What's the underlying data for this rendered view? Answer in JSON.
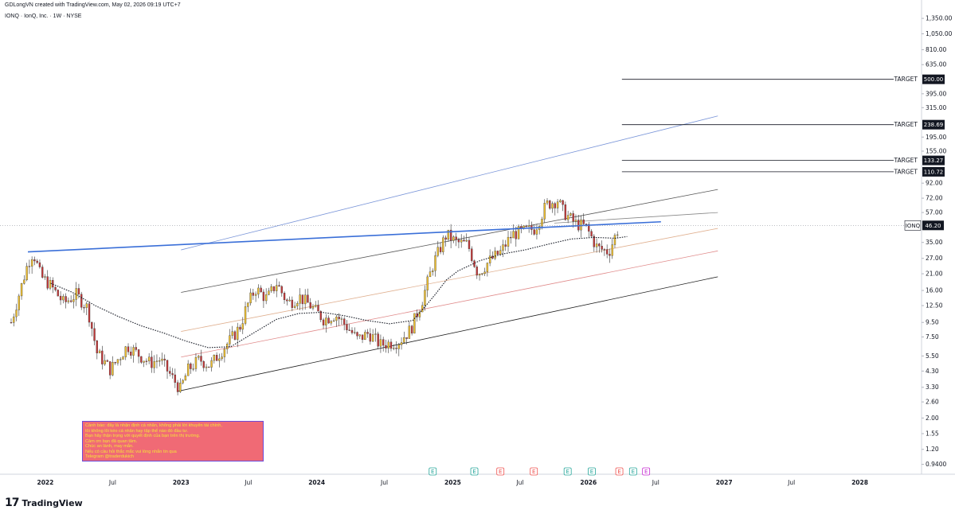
{
  "header": {
    "creator_line": "GDLongVN created with TradingView.com, May 02, 2026 09:19 UTC+7",
    "symbol_line": "IONQ · IonQ, Inc. · 1W · NYSE"
  },
  "footer": {
    "brand": "TradingView",
    "logo_glyph": "17"
  },
  "warning_note": {
    "lines": [
      "Cảnh báo: đây là nhận định cá nhân, không phải lời khuyên tài chính,",
      "tôi không lôi kéo cá nhân hay tập thể nào đó đầu tư.",
      "Bạn hãy thận trọng với quyết định của bạn trên thị trường.",
      "Cảm ơn bạn đã quan tâm.",
      "Chúc an lành, may mắn.",
      "Nếu có cầu hỏi thắc mắc vui lòng nhắn tin qua",
      "Telegram @traderdukich"
    ],
    "colors": {
      "background": "#f06a75",
      "border": "#6d4ad8",
      "text": "#f5e23a"
    }
  },
  "colors": {
    "up_candle": "#f0c030",
    "down_candle": "#c43838",
    "wick": "#333333",
    "resistance_line": "#3a6fd8",
    "target_line": "#131722",
    "earnings_green": "#26a69a",
    "earnings_red": "#ef5350",
    "dividend_purple": "#c62ad1"
  },
  "chart_data": {
    "type": "candlestick",
    "symbol": "IONQ",
    "last_price": 46.2,
    "last_price_label": "46.20",
    "y_scale": "log",
    "ylim": [
      0.8,
      1600
    ],
    "y_ticks": [
      "1,350.00",
      "1,050.00",
      "810.00",
      "635.00",
      "395.00",
      "315.00",
      "195.00",
      "155.00",
      "92.00",
      "72.00",
      "57.00",
      "35.00",
      "27.00",
      "21.00",
      "16.00",
      "12.50",
      "9.50",
      "7.50",
      "5.50",
      "4.30",
      "3.30",
      "2.60",
      "2.00",
      "1.55",
      "1.20",
      "0.9400"
    ],
    "y_tick_values": [
      1350,
      1050,
      810,
      635,
      395,
      315,
      195,
      155,
      92,
      72,
      57,
      35,
      27,
      21,
      16,
      12.5,
      9.5,
      7.5,
      5.5,
      4.3,
      3.3,
      2.6,
      2.0,
      1.55,
      1.2,
      0.94
    ],
    "xlim": [
      "2021-09-01",
      "2028-06-15"
    ],
    "x_ticks": [
      {
        "label": "2022",
        "date": "2022-01-01"
      },
      {
        "label": "Jul",
        "date": "2022-07-01"
      },
      {
        "label": "2023",
        "date": "2023-01-01"
      },
      {
        "label": "Jul",
        "date": "2023-07-01"
      },
      {
        "label": "2024",
        "date": "2024-01-01"
      },
      {
        "label": "Jul",
        "date": "2024-07-01"
      },
      {
        "label": "2025",
        "date": "2025-01-01"
      },
      {
        "label": "Jul",
        "date": "2025-07-01"
      },
      {
        "label": "2026",
        "date": "2026-01-01"
      },
      {
        "label": "Jul",
        "date": "2026-07-01"
      },
      {
        "label": "2027",
        "date": "2027-01-01"
      },
      {
        "label": "Jul",
        "date": "2027-07-01"
      },
      {
        "label": "2028",
        "date": "2028-01-01"
      }
    ],
    "price_path": [
      [
        "2021-10-01",
        9.5
      ],
      [
        "2021-11-15",
        25.0
      ],
      [
        "2021-11-29",
        30.0
      ],
      [
        "2021-12-20",
        20.0
      ],
      [
        "2022-01-10",
        18.0
      ],
      [
        "2022-02-20",
        13.0
      ],
      [
        "2022-03-25",
        15.0
      ],
      [
        "2022-04-25",
        12.0
      ],
      [
        "2022-05-20",
        5.8
      ],
      [
        "2022-06-25",
        4.4
      ],
      [
        "2022-08-10",
        6.5
      ],
      [
        "2022-09-10",
        5.6
      ],
      [
        "2022-10-10",
        4.9
      ],
      [
        "2022-11-05",
        5.2
      ],
      [
        "2022-12-10",
        3.8
      ],
      [
        "2022-12-30",
        3.2
      ],
      [
        "2023-01-20",
        4.4
      ],
      [
        "2023-02-20",
        5.2
      ],
      [
        "2023-03-20",
        4.7
      ],
      [
        "2023-04-20",
        6.0
      ],
      [
        "2023-05-20",
        7.5
      ],
      [
        "2023-06-10",
        9.0
      ],
      [
        "2023-06-25",
        12.0
      ],
      [
        "2023-07-20",
        16.5
      ],
      [
        "2023-08-20",
        14.0
      ],
      [
        "2023-09-15",
        18.0
      ],
      [
        "2023-10-15",
        13.0
      ],
      [
        "2023-11-15",
        14.5
      ],
      [
        "2023-12-15",
        12.5
      ],
      [
        "2024-01-20",
        10.0
      ],
      [
        "2024-02-20",
        10.8
      ],
      [
        "2024-03-20",
        9.0
      ],
      [
        "2024-04-20",
        7.2
      ],
      [
        "2024-05-20",
        8.0
      ],
      [
        "2024-06-20",
        6.6
      ],
      [
        "2024-08-10",
        7.0
      ],
      [
        "2024-09-10",
        8.5
      ],
      [
        "2024-10-10",
        13.5
      ],
      [
        "2024-11-10",
        25.0
      ],
      [
        "2024-12-15",
        40.0
      ],
      [
        "2025-01-10",
        35.0
      ],
      [
        "2025-02-10",
        34.0
      ],
      [
        "2025-03-10",
        21.0
      ],
      [
        "2025-04-10",
        26.0
      ],
      [
        "2025-05-10",
        30.0
      ],
      [
        "2025-06-10",
        40.0
      ],
      [
        "2025-07-10",
        42.0
      ],
      [
        "2025-08-10",
        44.0
      ],
      [
        "2025-09-10",
        65.0
      ],
      [
        "2025-10-10",
        70.0
      ],
      [
        "2025-10-25",
        58.0
      ],
      [
        "2025-11-25",
        48.0
      ],
      [
        "2025-12-25",
        45.0
      ],
      [
        "2026-01-25",
        32.0
      ],
      [
        "2026-02-25",
        30.0
      ],
      [
        "2026-03-25",
        46.2
      ]
    ],
    "moving_average": [
      [
        "2022-01-15",
        18.0
      ],
      [
        "2022-03-15",
        15.5
      ],
      [
        "2022-05-15",
        12.5
      ],
      [
        "2022-07-15",
        10.5
      ],
      [
        "2022-09-15",
        9.0
      ],
      [
        "2022-11-15",
        8.0
      ],
      [
        "2023-01-15",
        7.0
      ],
      [
        "2023-03-15",
        6.3
      ],
      [
        "2023-05-15",
        6.4
      ],
      [
        "2023-07-15",
        8.0
      ],
      [
        "2023-09-15",
        10.0
      ],
      [
        "2023-11-15",
        11.0
      ],
      [
        "2024-01-15",
        11.2
      ],
      [
        "2024-03-15",
        10.6
      ],
      [
        "2024-05-15",
        9.8
      ],
      [
        "2024-07-15",
        9.3
      ],
      [
        "2024-09-15",
        9.8
      ],
      [
        "2024-10-15",
        12.0
      ],
      [
        "2024-11-15",
        15.0
      ],
      [
        "2024-12-15",
        19.0
      ],
      [
        "2025-01-15",
        22.0
      ],
      [
        "2025-03-15",
        26.0
      ],
      [
        "2025-05-15",
        29.0
      ],
      [
        "2025-07-15",
        31.0
      ],
      [
        "2025-09-15",
        34.0
      ],
      [
        "2025-11-15",
        37.0
      ],
      [
        "2026-01-15",
        38.0
      ],
      [
        "2026-03-15",
        37.5
      ],
      [
        "2026-04-15",
        38.5
      ]
    ],
    "resistance_line": {
      "from": [
        "2021-11-15",
        30.0
      ],
      "to": [
        "2026-07-15",
        49.0
      ]
    },
    "channel_lines": [
      {
        "color": "#1f1f1f",
        "from": [
          "2022-12-25",
          3.1
        ],
        "to": [
          "2026-12-15",
          20.0
        ]
      },
      {
        "color": "#e08a8a",
        "from": [
          "2023-01-01",
          5.4
        ],
        "to": [
          "2026-12-15",
          30.5
        ]
      },
      {
        "color": "#e0b090",
        "from": [
          "2023-01-01",
          8.2
        ],
        "to": [
          "2026-12-15",
          44.0
        ]
      },
      {
        "color": "#555555",
        "from": [
          "2023-01-01",
          15.5
        ],
        "to": [
          "2026-12-15",
          83.0
        ]
      },
      {
        "color": "#7a95d8",
        "from": [
          "2023-01-01",
          31.0
        ],
        "to": [
          "2026-12-15",
          275.0
        ]
      },
      {
        "color": "#888888",
        "from": [
          "2025-10-01",
          48.0
        ],
        "to": [
          "2026-12-15",
          57.0
        ]
      }
    ],
    "targets": [
      {
        "label": "TARGET",
        "value": 500.0,
        "value_label": "500.00"
      },
      {
        "label": "TARGET",
        "value": 238.69,
        "value_label": "238.69"
      },
      {
        "label": "TARGET",
        "value": 133.27,
        "value_label": "133.27"
      },
      {
        "label": "TARGET",
        "value": 110.72,
        "value_label": "110.72"
      }
    ],
    "target_line_start": "2026-04-01",
    "events": [
      {
        "date": "2024-11-08",
        "type": "E",
        "color": "green"
      },
      {
        "date": "2025-02-28",
        "type": "E",
        "color": "green"
      },
      {
        "date": "2025-05-09",
        "type": "E",
        "color": "red"
      },
      {
        "date": "2025-08-07",
        "type": "E",
        "color": "red"
      },
      {
        "date": "2025-11-06",
        "type": "E",
        "color": "green"
      },
      {
        "date": "2026-01-10",
        "type": "E",
        "color": "green"
      },
      {
        "date": "2026-03-25",
        "type": "E",
        "color": "red"
      },
      {
        "date": "2026-05-01",
        "type": "E",
        "color": "green"
      },
      {
        "date": "2026-06-05",
        "type": "E",
        "color": "purple"
      }
    ]
  }
}
